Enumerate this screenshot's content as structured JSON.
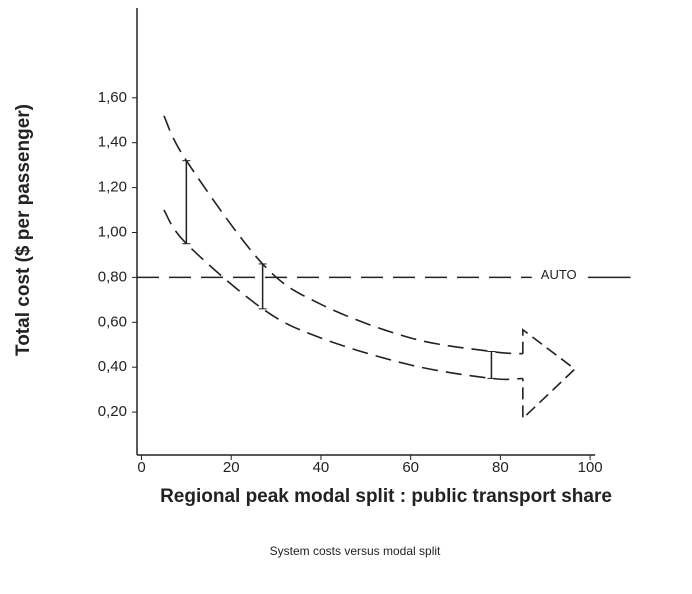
{
  "chart_data": {
    "type": "line",
    "y_label": "Total cost ($ per passenger)",
    "x_label": "Regional peak modal split : public transport share",
    "caption": "System costs versus modal split",
    "x": [
      5,
      10,
      27,
      40,
      60,
      78,
      85
    ],
    "series": [
      {
        "color": "#222222",
        "values": [
          1.52,
          1.32,
          0.86,
          0.68,
          0.53,
          0.47,
          0.46
        ]
      },
      {
        "color": "#222222",
        "values": [
          1.1,
          0.95,
          0.66,
          0.53,
          0.41,
          0.35,
          0.35
        ]
      }
    ],
    "reference_line": {
      "label": "AUTO",
      "value": 0.8
    },
    "xlim": [
      -1,
      110
    ],
    "ylim": [
      0,
      2.0
    ],
    "xticks": [
      0,
      20,
      40,
      60,
      80,
      100
    ],
    "yticks": [
      {
        "value": 0.2,
        "label": "0,20"
      },
      {
        "value": 0.4,
        "label": "0,40"
      },
      {
        "value": 0.6,
        "label": "0,60"
      },
      {
        "value": 0.8,
        "label": "0,80"
      },
      {
        "value": 1.0,
        "label": "1,00"
      },
      {
        "value": 1.2,
        "label": "1,20"
      },
      {
        "value": 1.4,
        "label": "1,40"
      },
      {
        "value": 1.6,
        "label": "1,60"
      }
    ],
    "grid": false
  }
}
